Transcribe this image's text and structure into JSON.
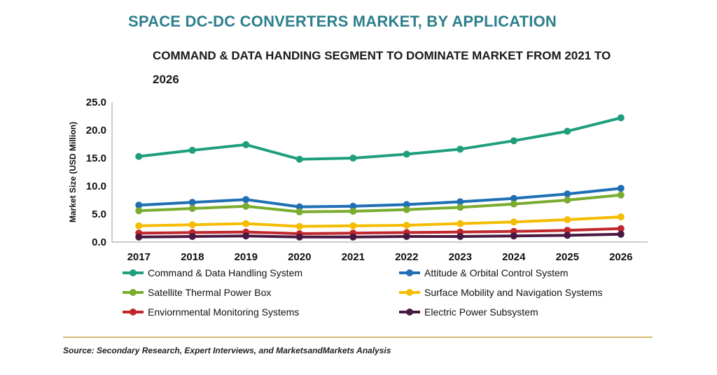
{
  "title": "SPACE DC-DC CONVERTERS MARKET, BY APPLICATION",
  "subtitle": "COMMAND & DATA HANDING SEGMENT TO DOMINATE MARKET FROM 2021 TO 2026",
  "source": "Source: Secondary Research, Expert Interviews, and MarketsandMarkets Analysis",
  "chart_data": {
    "type": "line",
    "title": "SPACE DC-DC CONVERTERS MARKET, BY APPLICATION",
    "subtitle": "COMMAND & DATA HANDING SEGMENT TO DOMINATE MARKET FROM 2021 TO 2026",
    "xlabel": "",
    "ylabel": "Market Size (USD Million)",
    "ylim": [
      0,
      25
    ],
    "yticks": [
      "0.0",
      "5.0",
      "10.0",
      "15.0",
      "20.0",
      "25.0"
    ],
    "x": [
      "2017",
      "2018",
      "2019",
      "2020",
      "2021",
      "2022",
      "2023",
      "2024",
      "2025",
      "2026"
    ],
    "grid": false,
    "legend_position": "bottom",
    "series": [
      {
        "name": "Command & Data Handling System",
        "color": "#1f9e7e",
        "values": [
          15.3,
          16.4,
          17.4,
          14.8,
          15.0,
          15.7,
          16.6,
          18.1,
          19.8,
          22.2
        ]
      },
      {
        "name": "Attitude & Orbital Control System",
        "color": "#1f6fb5",
        "values": [
          6.6,
          7.1,
          7.6,
          6.3,
          6.4,
          6.7,
          7.2,
          7.8,
          8.6,
          9.6
        ]
      },
      {
        "name": "Satellite Thermal Power Box",
        "color": "#7aac2f",
        "values": [
          5.6,
          6.0,
          6.4,
          5.4,
          5.5,
          5.8,
          6.2,
          6.8,
          7.5,
          8.4
        ]
      },
      {
        "name": "Surface Mobility and Navigation Systems",
        "color": "#f5bc00",
        "values": [
          2.9,
          3.1,
          3.3,
          2.8,
          2.9,
          3.0,
          3.3,
          3.6,
          4.0,
          4.5
        ]
      },
      {
        "name": "Enviornmental Monitoring Systems",
        "color": "#c0282d",
        "values": [
          1.6,
          1.7,
          1.8,
          1.5,
          1.6,
          1.7,
          1.8,
          1.9,
          2.1,
          2.4
        ]
      },
      {
        "name": "Electric Power Subsystem",
        "color": "#4a1942",
        "values": [
          0.9,
          1.0,
          1.1,
          0.9,
          0.9,
          1.0,
          1.0,
          1.1,
          1.2,
          1.4
        ]
      }
    ]
  }
}
